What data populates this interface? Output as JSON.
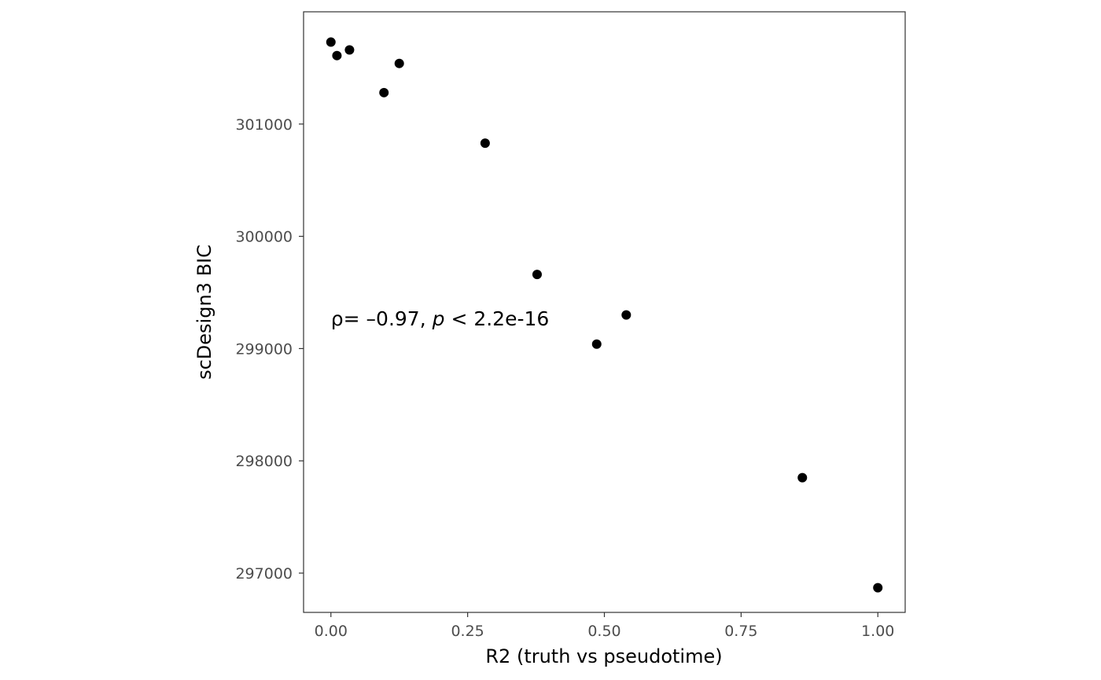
{
  "chart_data": {
    "type": "scatter",
    "xlabel": "R2 (truth vs pseudotime)",
    "ylabel": "scDesign3 BIC",
    "xlim": [
      -0.05,
      1.05
    ],
    "ylim": [
      296650,
      302000
    ],
    "x_ticks": [
      0.0,
      0.25,
      0.5,
      0.75,
      1.0
    ],
    "x_tick_labels": [
      "0.00",
      "0.25",
      "0.50",
      "0.75",
      "1.00"
    ],
    "y_ticks": [
      297000,
      298000,
      299000,
      300000,
      301000
    ],
    "y_tick_labels": [
      "297000",
      "298000",
      "299000",
      "300000",
      "301000"
    ],
    "grid": false,
    "points": [
      {
        "x": 0.0,
        "y": 301730
      },
      {
        "x": 0.011,
        "y": 301610
      },
      {
        "x": 0.034,
        "y": 301660
      },
      {
        "x": 0.097,
        "y": 301280
      },
      {
        "x": 0.125,
        "y": 301540
      },
      {
        "x": 0.282,
        "y": 300830
      },
      {
        "x": 0.377,
        "y": 299660
      },
      {
        "x": 0.486,
        "y": 299040
      },
      {
        "x": 0.54,
        "y": 299300
      },
      {
        "x": 0.862,
        "y": 297850
      },
      {
        "x": 1.0,
        "y": 296870
      }
    ],
    "annotation": {
      "rho_symbol": "ρ",
      "rho_eq": "= –0.97,",
      "p_symbol": "p",
      "p_text": "< 2.2e-16",
      "x": 0.0,
      "y": 299270
    }
  },
  "colors": {
    "point": "#000000",
    "panel_border": "#333333",
    "tick_label": "#4d4d4d"
  }
}
